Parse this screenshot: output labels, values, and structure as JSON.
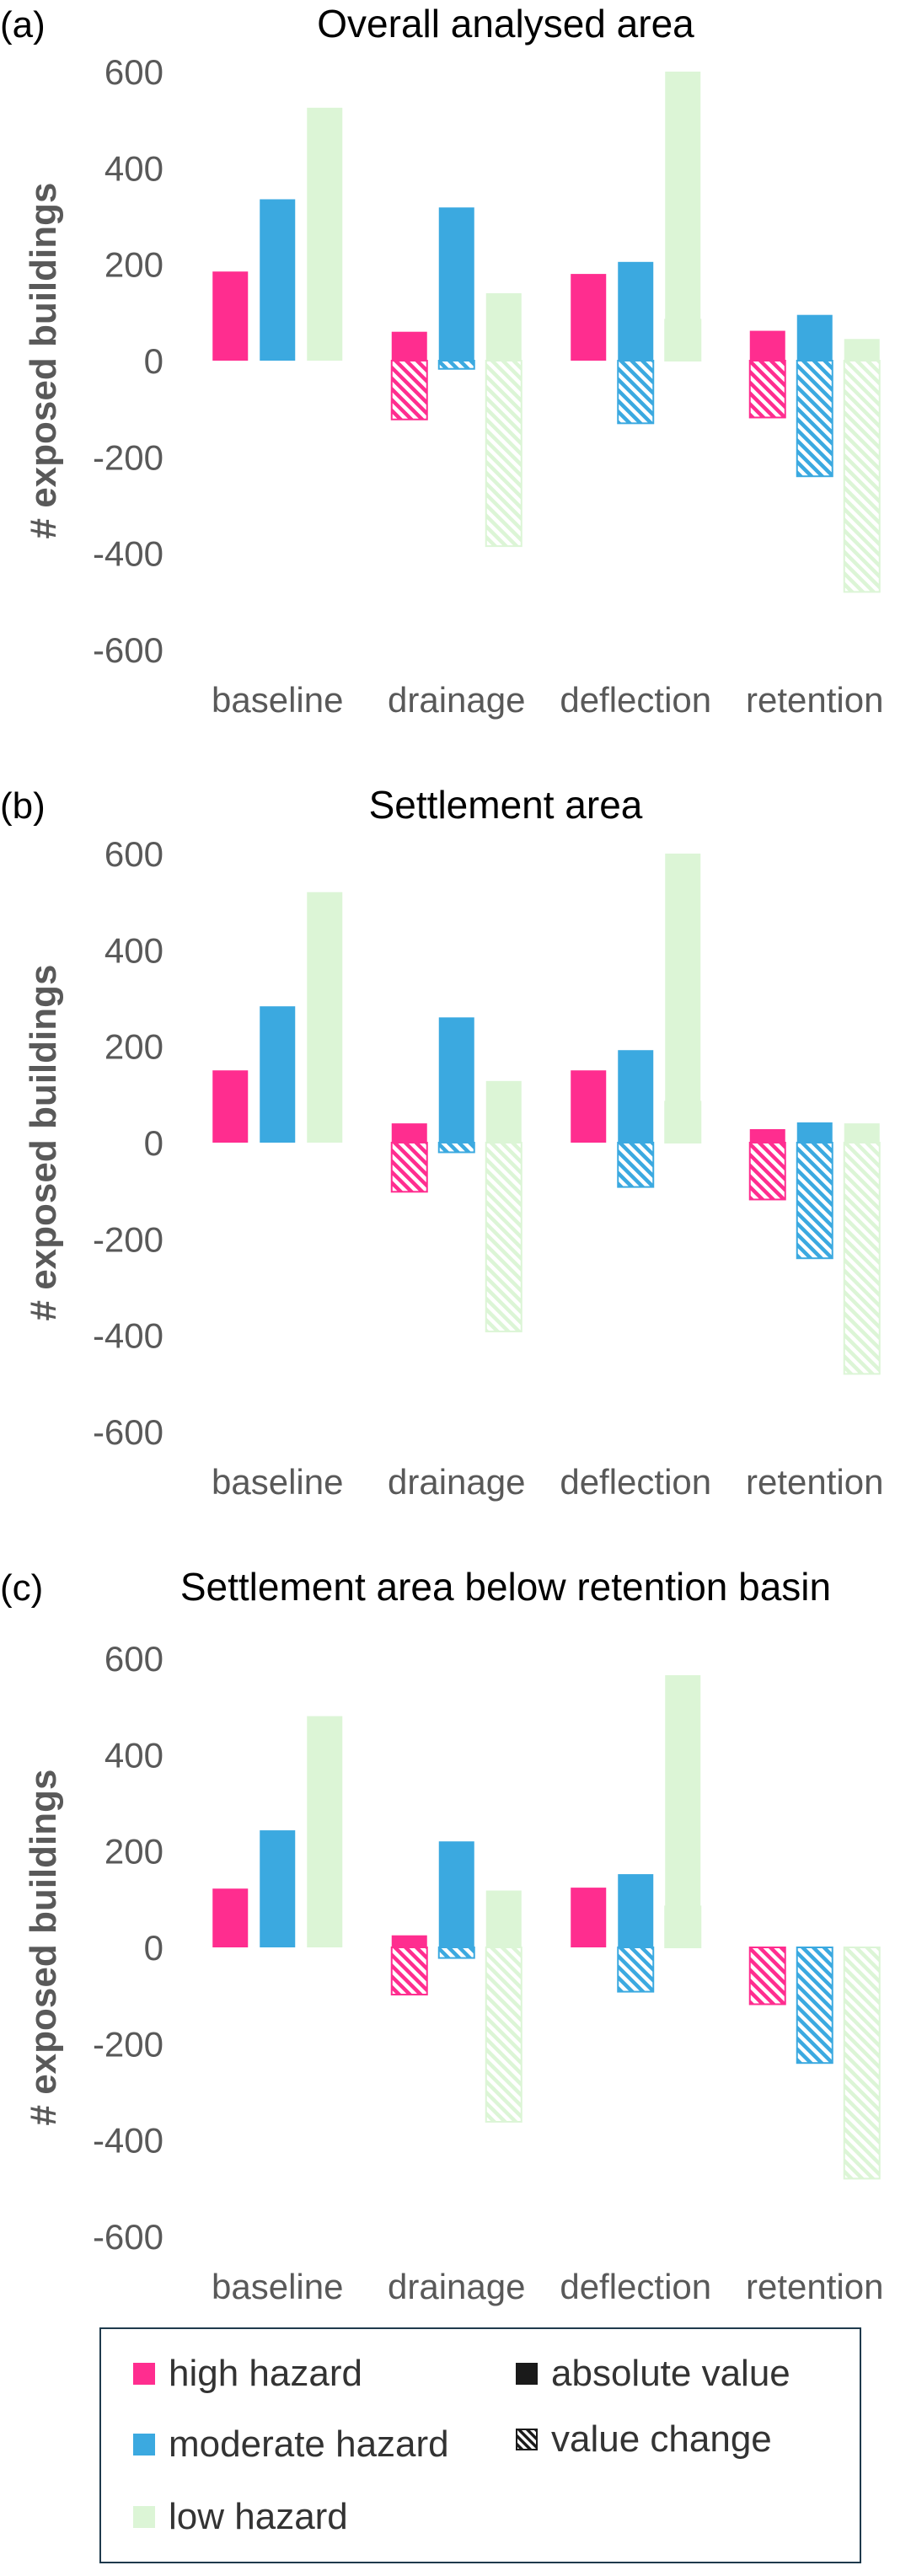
{
  "colors": {
    "high": "#ff2d8f",
    "moderate": "#3ba9e0",
    "low": "#dcf5d6",
    "axis_text": "#595959",
    "solid_legend": "#1a1a1a"
  },
  "legend": {
    "high_hazard": "high hazard",
    "moderate_hazard": "moderate hazard",
    "low_hazard": "low hazard",
    "absolute_value": "absolute value",
    "value_change": "value change"
  },
  "chart_data": [
    {
      "type": "bar",
      "panel_label": "(a)",
      "title": "Overall analysed area",
      "ylabel": "# exposed buildings",
      "ylim": [
        -600,
        600
      ],
      "yticks": [
        600,
        400,
        200,
        0,
        -200,
        -400,
        -600
      ],
      "categories": [
        "baseline",
        "drainage",
        "deflection",
        "retention"
      ],
      "series": [
        {
          "name": "high hazard",
          "absolute": [
            185,
            60,
            180,
            62
          ],
          "change": [
            null,
            -122,
            null,
            -118
          ]
        },
        {
          "name": "moderate hazard",
          "absolute": [
            335,
            318,
            205,
            95
          ],
          "change": [
            null,
            -17,
            -130,
            -240
          ]
        },
        {
          "name": "low hazard",
          "absolute": [
            525,
            140,
            600,
            45
          ],
          "change": [
            null,
            -385,
            85,
            -480
          ]
        }
      ]
    },
    {
      "type": "bar",
      "panel_label": "(b)",
      "title": "Settlement area",
      "ylabel": "# exposed buildings",
      "ylim": [
        -600,
        600
      ],
      "yticks": [
        600,
        400,
        200,
        0,
        -200,
        -400,
        -600
      ],
      "categories": [
        "baseline",
        "drainage",
        "deflection",
        "retention"
      ],
      "series": [
        {
          "name": "high hazard",
          "absolute": [
            150,
            40,
            150,
            28
          ],
          "change": [
            null,
            -102,
            null,
            -118
          ]
        },
        {
          "name": "moderate hazard",
          "absolute": [
            283,
            260,
            192,
            42
          ],
          "change": [
            null,
            -20,
            -92,
            -240
          ]
        },
        {
          "name": "low hazard",
          "absolute": [
            520,
            128,
            600,
            40
          ],
          "change": [
            null,
            -392,
            85,
            -480
          ]
        }
      ]
    },
    {
      "type": "bar",
      "panel_label": "(c)",
      "title": "Settlement area below retention basin",
      "ylabel": "# exposed buildings",
      "ylim": [
        -600,
        600
      ],
      "yticks": [
        600,
        400,
        200,
        0,
        -200,
        -400,
        -600
      ],
      "categories": [
        "baseline",
        "drainage",
        "deflection",
        "retention"
      ],
      "series": [
        {
          "name": "high hazard",
          "absolute": [
            122,
            25,
            124,
            null
          ],
          "change": [
            null,
            -98,
            null,
            -118
          ]
        },
        {
          "name": "moderate hazard",
          "absolute": [
            243,
            220,
            152,
            null
          ],
          "change": [
            null,
            -22,
            -92,
            -240
          ]
        },
        {
          "name": "low hazard",
          "absolute": [
            480,
            118,
            565,
            null
          ],
          "change": [
            null,
            -362,
            85,
            -480
          ]
        }
      ]
    }
  ]
}
